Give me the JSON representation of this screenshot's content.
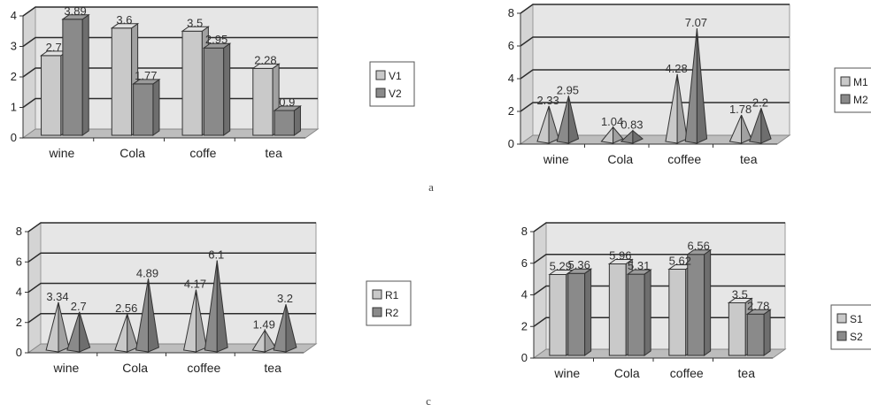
{
  "colors": {
    "light": "#c9c9c9",
    "dark": "#8a8a8a",
    "wall": "#e6e6e6",
    "grid": "#2b2b2b"
  },
  "captions": [
    "a",
    "c"
  ],
  "chart_data": [
    {
      "type": "bar",
      "shape": "box",
      "categories": [
        "wine",
        "Cola",
        "coffe",
        "tea"
      ],
      "series": [
        {
          "name": "V1",
          "values": [
            2.7,
            3.6,
            3.5,
            2.28
          ]
        },
        {
          "name": "V2",
          "values": [
            3.89,
            1.77,
            2.95,
            0.9
          ]
        }
      ],
      "labels": [
        [
          "2.7",
          "3.6",
          "3.5",
          "2.28"
        ],
        [
          "3.89",
          "1.77",
          "2.95",
          "0.9"
        ]
      ],
      "yticks": [
        0,
        1,
        2,
        3,
        4
      ],
      "ylim": [
        0,
        4
      ]
    },
    {
      "type": "bar",
      "shape": "pyramid",
      "categories": [
        "wine",
        "Cola",
        "coffee",
        "tea"
      ],
      "series": [
        {
          "name": "M1",
          "values": [
            2.33,
            1.04,
            4.28,
            1.78
          ]
        },
        {
          "name": "M2",
          "values": [
            2.95,
            0.83,
            7.07,
            2.2
          ]
        }
      ],
      "labels": [
        [
          "2.33",
          "1.04",
          "4.28",
          "1.78"
        ],
        [
          "2.95",
          "0.83",
          "7.07",
          "2.2"
        ]
      ],
      "yticks": [
        0,
        2,
        4,
        6,
        8
      ],
      "ylim": [
        0,
        8
      ]
    },
    {
      "type": "bar",
      "shape": "pyramid",
      "categories": [
        "wine",
        "Cola",
        "coffee",
        "tea"
      ],
      "series": [
        {
          "name": "R1",
          "values": [
            3.34,
            2.56,
            4.17,
            1.49
          ]
        },
        {
          "name": "R2",
          "values": [
            2.7,
            4.89,
            6.1,
            3.2
          ]
        }
      ],
      "labels": [
        [
          "3.34",
          "2.56",
          "4.17",
          "1.49"
        ],
        [
          "2.7",
          "4.89",
          "6.1",
          "3.2"
        ]
      ],
      "yticks": [
        0,
        2,
        4,
        6,
        8
      ],
      "ylim": [
        0,
        8
      ]
    },
    {
      "type": "bar",
      "shape": "box",
      "categories": [
        "wine",
        "Cola",
        "coffee",
        "tea"
      ],
      "series": [
        {
          "name": "S1",
          "values": [
            5.29,
            5.96,
            5.62,
            3.5
          ]
        },
        {
          "name": "S2",
          "values": [
            5.36,
            5.31,
            6.56,
            2.78
          ]
        }
      ],
      "labels": [
        [
          "5.29",
          "5.96",
          "5.62",
          "3.5"
        ],
        [
          "5.36",
          "5.31",
          "6.56",
          "2.78"
        ]
      ],
      "yticks": [
        0,
        2,
        4,
        6,
        8
      ],
      "ylim": [
        0,
        8
      ]
    }
  ]
}
